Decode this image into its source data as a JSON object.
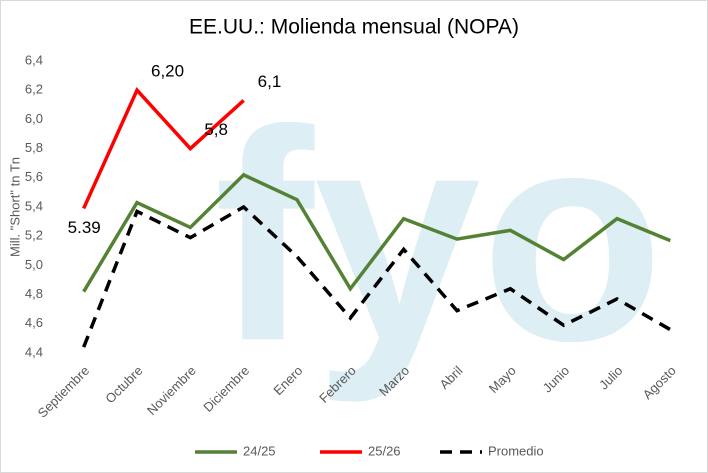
{
  "chart_data": {
    "type": "line",
    "title": "EE.UU.: Molienda mensual (NOPA)",
    "y_label": "Mill. \"Short\" tn Tn",
    "watermark": "fyo",
    "categories": [
      "Septiembre",
      "Octubre",
      "Noviembre",
      "Diciembre",
      "Enero",
      "Febrero",
      "Marzo",
      "Abril",
      "Mayo",
      "Junio",
      "Julio",
      "Agosto"
    ],
    "series": [
      {
        "name": "24/25",
        "color": "#548235",
        "dash": false,
        "values": [
          4.82,
          5.43,
          5.26,
          5.62,
          5.45,
          4.84,
          5.32,
          5.18,
          5.24,
          5.04,
          5.32,
          5.17
        ]
      },
      {
        "name": "25/26",
        "color": "#ff0000",
        "dash": false,
        "values": [
          5.39,
          6.2,
          5.8,
          6.13,
          null,
          null,
          null,
          null,
          null,
          null,
          null,
          null
        ],
        "value_labels": [
          "5.39",
          "6,20",
          "5,8",
          "6,1",
          null,
          null,
          null,
          null,
          null,
          null,
          null,
          null
        ]
      },
      {
        "name": "Promedio",
        "color": "#000000",
        "dash": true,
        "values": [
          4.44,
          5.37,
          5.19,
          5.4,
          5.06,
          4.64,
          5.11,
          4.69,
          4.84,
          4.59,
          4.77,
          4.56
        ]
      }
    ],
    "ylim": [
      4.4,
      6.4
    ],
    "yticks": [
      {
        "value": 4.4,
        "label": "4,4"
      },
      {
        "value": 4.6,
        "label": "4,6"
      },
      {
        "value": 4.8,
        "label": "4,8"
      },
      {
        "value": 5.0,
        "label": "5,0"
      },
      {
        "value": 5.2,
        "label": "5,2"
      },
      {
        "value": 5.4,
        "label": "5,4"
      },
      {
        "value": 5.6,
        "label": "5,6"
      },
      {
        "value": 5.8,
        "label": "5,8"
      },
      {
        "value": 6.0,
        "label": "6,0"
      },
      {
        "value": 6.2,
        "label": "6,2"
      },
      {
        "value": 6.4,
        "label": "6,4"
      }
    ],
    "grid": false,
    "legend": "bottom"
  }
}
